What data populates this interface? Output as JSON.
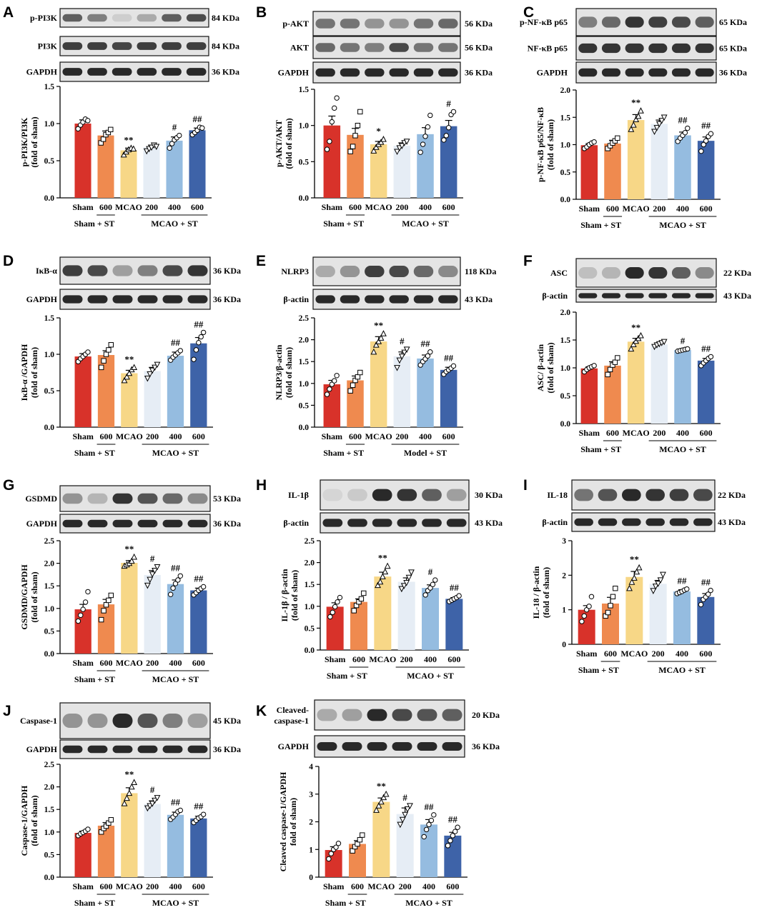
{
  "colors": [
    "#d8322a",
    "#ef8a4f",
    "#f7d787",
    "#e6edf5",
    "#95bce0",
    "#3e63a8"
  ],
  "x_categories": [
    "Sham",
    "600",
    "MCAO",
    "200",
    "400",
    "600"
  ],
  "chart_data": [
    {
      "id": "A",
      "type": "bar",
      "letter": "A",
      "group_left": "Sham + ST",
      "group_right": "MCAO + ST",
      "ylabel": [
        "p-PI3K/PI3K",
        "(fold of sham)"
      ],
      "ylim": [
        0,
        1.5
      ],
      "yticks": [
        "0.0",
        "0.5",
        "1.0",
        "1.5"
      ],
      "ytick_values": [
        0,
        0.5,
        1.0,
        1.5
      ],
      "values": [
        1.0,
        0.84,
        0.64,
        0.68,
        0.77,
        0.91
      ],
      "errors": [
        0.05,
        0.06,
        0.03,
        0.03,
        0.05,
        0.03
      ],
      "points": [
        [
          0.93,
          0.98,
          1.02,
          1.06,
          1.04
        ],
        [
          0.74,
          0.79,
          0.85,
          0.88,
          0.92
        ],
        [
          0.58,
          0.62,
          0.65,
          0.67,
          0.66
        ],
        [
          0.63,
          0.66,
          0.68,
          0.71,
          0.69
        ],
        [
          0.67,
          0.73,
          0.78,
          0.81,
          0.84
        ],
        [
          0.85,
          0.88,
          0.91,
          0.95,
          0.94
        ]
      ],
      "markers": [
        "circle",
        "square",
        "triangle",
        "invtriangle",
        "circle",
        "circle"
      ],
      "sig": [
        "",
        "",
        "**",
        "",
        "#",
        "##"
      ],
      "blots": [
        {
          "label": "p-PI3K",
          "kda": "84 KDa"
        },
        {
          "label": "PI3K",
          "kda": "84 KDa"
        },
        {
          "label": "GAPDH",
          "kda": "36 KDa"
        }
      ]
    },
    {
      "id": "B",
      "type": "bar",
      "letter": "B",
      "group_left": "Sham + ST",
      "group_right": "MCAO + ST",
      "ylabel": [
        "p-AKT/AKT",
        "(fold of sham)"
      ],
      "ylim": [
        0,
        1.5
      ],
      "yticks": [
        "0.0",
        "0.5",
        "1.0",
        "1.5"
      ],
      "ytick_values": [
        0,
        0.5,
        1.0,
        1.5
      ],
      "values": [
        1.0,
        0.87,
        0.74,
        0.72,
        0.88,
        0.99
      ],
      "errors": [
        0.13,
        0.09,
        0.04,
        0.04,
        0.09,
        0.08
      ],
      "points": [
        [
          0.67,
          0.78,
          1.05,
          1.24,
          1.38
        ],
        [
          0.64,
          0.71,
          0.86,
          1.0,
          1.19
        ],
        [
          0.65,
          0.7,
          0.74,
          0.77,
          0.81
        ],
        [
          0.64,
          0.69,
          0.72,
          0.76,
          0.78
        ],
        [
          0.63,
          0.74,
          0.85,
          0.98,
          1.14
        ],
        [
          0.8,
          0.86,
          0.97,
          1.15,
          1.19
        ]
      ],
      "markers": [
        "circle",
        "square",
        "triangle",
        "invtriangle",
        "circle",
        "circle"
      ],
      "sig": [
        "",
        "",
        "*",
        "",
        "",
        "#"
      ],
      "blots": [
        {
          "label": "p-AKT",
          "kda": "56 KDa"
        },
        {
          "label": "AKT",
          "kda": "56 KDa"
        },
        {
          "label": "GAPDH",
          "kda": "36 KDa"
        }
      ]
    },
    {
      "id": "C",
      "type": "bar",
      "letter": "C",
      "group_left": "Sham + ST",
      "group_right": "MCAO + ST",
      "ylabel": [
        "p-NF-κB p65/NF-κB",
        "(fold of sham)"
      ],
      "ylim": [
        0,
        2.0
      ],
      "yticks": [
        "0.0",
        "0.5",
        "1.0",
        "1.5",
        "2.0"
      ],
      "ytick_values": [
        0,
        0.5,
        1.0,
        1.5,
        2.0
      ],
      "values": [
        0.99,
        1.02,
        1.45,
        1.38,
        1.17,
        1.07
      ],
      "errors": [
        0.03,
        0.06,
        0.1,
        0.07,
        0.06,
        0.07
      ],
      "points": [
        [
          0.93,
          0.96,
          1.0,
          1.03,
          1.05
        ],
        [
          0.93,
          0.98,
          1.03,
          1.07,
          1.12
        ],
        [
          1.28,
          1.36,
          1.46,
          1.52,
          1.62
        ],
        [
          1.24,
          1.31,
          1.38,
          1.44,
          1.5
        ],
        [
          1.06,
          1.12,
          1.17,
          1.22,
          1.3
        ],
        [
          0.88,
          1.0,
          1.07,
          1.15,
          1.2
        ]
      ],
      "markers": [
        "circle",
        "square",
        "triangle",
        "invtriangle",
        "circle",
        "circle"
      ],
      "sig": [
        "",
        "",
        "**",
        "",
        "##",
        "##"
      ],
      "blots": [
        {
          "label": "p-NF-κB p65",
          "kda": "65 KDa"
        },
        {
          "label": "NF-κB p65",
          "kda": "65 KDa"
        },
        {
          "label": "GAPDH",
          "kda": "36 KDa"
        }
      ]
    },
    {
      "id": "D",
      "type": "bar",
      "letter": "D",
      "group_left": "Sham + ST",
      "group_right": "MCAO + ST",
      "ylabel": [
        "IκB-α /GAPDH",
        "(fold of sham)"
      ],
      "ylim": [
        0,
        1.5
      ],
      "yticks": [
        "0.0",
        "0.5",
        "1.0",
        "1.5"
      ],
      "ytick_values": [
        0,
        0.5,
        1.0,
        1.5
      ],
      "values": [
        0.97,
        0.99,
        0.74,
        0.77,
        0.98,
        1.15
      ],
      "errors": [
        0.04,
        0.06,
        0.04,
        0.05,
        0.05,
        0.08
      ],
      "points": [
        [
          0.9,
          0.94,
          0.97,
          1.0,
          1.03
        ],
        [
          0.82,
          0.91,
          1.0,
          1.06,
          1.13
        ],
        [
          0.64,
          0.69,
          0.74,
          0.79,
          0.82
        ],
        [
          0.67,
          0.73,
          0.78,
          0.82,
          0.86
        ],
        [
          0.92,
          0.96,
          0.99,
          1.02,
          1.05
        ],
        [
          0.93,
          1.06,
          1.16,
          1.24,
          1.3
        ]
      ],
      "markers": [
        "circle",
        "square",
        "triangle",
        "invtriangle",
        "circle",
        "circle"
      ],
      "sig": [
        "",
        "",
        "**",
        "",
        "##",
        "##"
      ],
      "blots": [
        {
          "label": "IκB-α",
          "kda": "36 KDa"
        },
        {
          "label": "GAPDH",
          "kda": "36 KDa"
        }
      ]
    },
    {
      "id": "E",
      "type": "bar",
      "letter": "E",
      "group_left": "Sham + ST",
      "group_right": "Model + ST",
      "ylabel": [
        "NLRP3/β-actin",
        "(fold of sham)"
      ],
      "ylim": [
        0,
        2.5
      ],
      "yticks": [
        "0.0",
        "0.5",
        "1.0",
        "1.5",
        "2.0",
        "2.5"
      ],
      "ytick_values": [
        0,
        0.5,
        1.0,
        1.5,
        2.0,
        2.5
      ],
      "values": [
        0.98,
        1.07,
        1.96,
        1.62,
        1.57,
        1.31
      ],
      "errors": [
        0.09,
        0.1,
        0.11,
        0.1,
        0.08,
        0.06
      ],
      "points": [
        [
          0.75,
          0.87,
          0.98,
          1.06,
          1.18
        ],
        [
          0.83,
          0.96,
          1.07,
          1.15,
          1.25
        ],
        [
          1.72,
          1.88,
          1.96,
          2.04,
          2.14
        ],
        [
          1.36,
          1.53,
          1.62,
          1.71,
          1.78
        ],
        [
          1.42,
          1.5,
          1.56,
          1.63,
          1.72
        ],
        [
          1.21,
          1.27,
          1.31,
          1.35,
          1.4
        ]
      ],
      "markers": [
        "circle",
        "square",
        "triangle",
        "invtriangle",
        "circle",
        "circle"
      ],
      "sig": [
        "",
        "",
        "**",
        "#",
        "##",
        "##"
      ],
      "blots": [
        {
          "label": "NLRP3",
          "kda": "118 KDa"
        },
        {
          "label": "β-actin",
          "kda": "43 KDa"
        }
      ]
    },
    {
      "id": "F",
      "type": "bar",
      "letter": "F",
      "group_left": "Sham + ST",
      "group_right": "MCAO + ST",
      "ylabel": [
        "ASC/ β-actin",
        "(fold of sham)"
      ],
      "ylim": [
        0,
        2.0
      ],
      "yticks": [
        "0.0",
        "0.5",
        "1.0",
        "1.5",
        "2.0"
      ],
      "ytick_values": [
        0,
        0.5,
        1.0,
        1.5,
        2.0
      ],
      "values": [
        0.99,
        1.04,
        1.47,
        1.42,
        1.32,
        1.13
      ],
      "errors": [
        0.03,
        0.07,
        0.06,
        0.03,
        0.01,
        0.04
      ],
      "points": [
        [
          0.93,
          0.97,
          1.0,
          1.02,
          1.04
        ],
        [
          0.88,
          0.97,
          1.05,
          1.1,
          1.18
        ],
        [
          1.34,
          1.42,
          1.48,
          1.53,
          1.58
        ],
        [
          1.38,
          1.41,
          1.43,
          1.45,
          1.47
        ],
        [
          1.3,
          1.31,
          1.32,
          1.33,
          1.34
        ],
        [
          1.04,
          1.09,
          1.13,
          1.17,
          1.2
        ]
      ],
      "markers": [
        "circle",
        "square",
        "triangle",
        "invtriangle",
        "circle",
        "circle"
      ],
      "sig": [
        "",
        "",
        "**",
        "",
        "#",
        "##"
      ],
      "blots": [
        {
          "label": "ASC",
          "kda": "22 KDa"
        },
        {
          "label": "β-actin",
          "kda": "43 KDa"
        }
      ]
    },
    {
      "id": "G",
      "type": "bar",
      "letter": "G",
      "group_left": "Sham + ST",
      "group_right": "MCAO + ST",
      "ylabel": [
        "GSDMD/GAPDH",
        "(fold of sham)"
      ],
      "ylim": [
        0,
        2.5
      ],
      "yticks": [
        "0.0",
        "0.5",
        "1.0",
        "1.5",
        "2.0",
        "2.5"
      ],
      "ytick_values": [
        0,
        0.5,
        1.0,
        1.5,
        2.0,
        2.5
      ],
      "values": [
        0.98,
        1.09,
        2.01,
        1.74,
        1.54,
        1.4
      ],
      "errors": [
        0.11,
        0.11,
        0.05,
        0.1,
        0.09,
        0.05
      ],
      "points": [
        [
          0.72,
          0.85,
          0.98,
          1.14,
          1.37
        ],
        [
          0.75,
          0.95,
          1.08,
          1.18,
          1.29
        ],
        [
          1.94,
          1.97,
          2.0,
          2.05,
          2.14
        ],
        [
          1.51,
          1.64,
          1.76,
          1.84,
          1.92
        ],
        [
          1.31,
          1.45,
          1.55,
          1.63,
          1.72
        ],
        [
          1.3,
          1.35,
          1.4,
          1.44,
          1.48
        ]
      ],
      "markers": [
        "circle",
        "square",
        "triangle",
        "invtriangle",
        "circle",
        "circle"
      ],
      "sig": [
        "",
        "",
        "**",
        "#",
        "##",
        "##"
      ],
      "blots": [
        {
          "label": "GSDMD",
          "kda": "53 KDa"
        },
        {
          "label": "GAPDH",
          "kda": "36 KDa"
        }
      ]
    },
    {
      "id": "H",
      "type": "bar",
      "letter": "H",
      "group_left": "Sham + ST",
      "group_right": "MCAO + ST",
      "ylabel": [
        "IL-1β / β-actin",
        "(fold of sham)"
      ],
      "ylim": [
        0,
        2.5
      ],
      "yticks": [
        "0.0",
        "0.5",
        "1.0",
        "1.5",
        "2.0",
        "2.5"
      ],
      "ytick_values": [
        0,
        0.5,
        1.0,
        1.5,
        2.0,
        2.5
      ],
      "values": [
        0.99,
        1.1,
        1.68,
        1.56,
        1.42,
        1.17
      ],
      "errors": [
        0.09,
        0.07,
        0.1,
        0.09,
        0.07,
        0.03
      ],
      "points": [
        [
          0.76,
          0.86,
          0.99,
          1.1,
          1.2
        ],
        [
          0.9,
          1.02,
          1.1,
          1.17,
          1.3
        ],
        [
          1.48,
          1.56,
          1.68,
          1.79,
          1.92
        ],
        [
          1.4,
          1.47,
          1.54,
          1.66,
          1.78
        ],
        [
          1.26,
          1.36,
          1.42,
          1.5,
          1.6
        ],
        [
          1.11,
          1.14,
          1.17,
          1.2,
          1.24
        ]
      ],
      "markers": [
        "circle",
        "square",
        "triangle",
        "invtriangle",
        "circle",
        "circle"
      ],
      "sig": [
        "",
        "",
        "**",
        "",
        "#",
        "##"
      ],
      "blots": [
        {
          "label": "IL-1β",
          "kda": "30 KDa"
        },
        {
          "label": "β-actin",
          "kda": "43 KDa"
        }
      ]
    },
    {
      "id": "I",
      "type": "bar",
      "letter": "I",
      "group_left": "Sham + ST",
      "group_right": "MCAO + ST",
      "ylabel": [
        "IL-18 / β-actin",
        "(fold of sham)"
      ],
      "ylim": [
        0,
        3
      ],
      "yticks": [
        "0",
        "1",
        "2",
        "3"
      ],
      "ytick_values": [
        0,
        1,
        2,
        3
      ],
      "values": [
        1.0,
        1.18,
        1.95,
        1.75,
        1.53,
        1.37
      ],
      "errors": [
        0.12,
        0.18,
        0.16,
        0.1,
        0.05,
        0.1
      ],
      "points": [
        [
          0.66,
          0.82,
          1.0,
          1.1,
          1.38
        ],
        [
          0.82,
          0.92,
          1.12,
          1.38,
          1.62
        ],
        [
          1.62,
          1.8,
          1.92,
          2.1,
          2.22
        ],
        [
          1.55,
          1.68,
          1.76,
          1.86,
          2.02
        ],
        [
          1.47,
          1.5,
          1.53,
          1.57,
          1.6
        ],
        [
          1.15,
          1.3,
          1.37,
          1.45,
          1.56
        ]
      ],
      "markers": [
        "circle",
        "square",
        "triangle",
        "invtriangle",
        "circle",
        "circle"
      ],
      "sig": [
        "",
        "",
        "**",
        "",
        "##",
        "##"
      ],
      "blots": [
        {
          "label": "IL-18",
          "kda": "22 KDa"
        },
        {
          "label": "β-actin",
          "kda": "43 KDa"
        }
      ]
    },
    {
      "id": "J",
      "type": "bar",
      "letter": "J",
      "group_left": "Sham + ST",
      "group_right": "MCAO + ST",
      "ylabel": [
        "Caspase-1/GAPDH",
        "(fold of sham)"
      ],
      "ylim": [
        0,
        2.5
      ],
      "yticks": [
        "0.0",
        "0.5",
        "1.0",
        "1.5",
        "2.0",
        "2.5"
      ],
      "ytick_values": [
        0,
        0.5,
        1.0,
        1.5,
        2.0,
        2.5
      ],
      "values": [
        0.98,
        1.14,
        1.86,
        1.62,
        1.38,
        1.3
      ],
      "errors": [
        0.04,
        0.07,
        0.12,
        0.07,
        0.06,
        0.05
      ],
      "points": [
        [
          0.92,
          0.96,
          0.99,
          1.02,
          1.06
        ],
        [
          1.0,
          1.08,
          1.13,
          1.2,
          1.27
        ],
        [
          1.63,
          1.75,
          1.86,
          2.0,
          2.1
        ],
        [
          1.53,
          1.58,
          1.63,
          1.7,
          1.76
        ],
        [
          1.28,
          1.33,
          1.39,
          1.45,
          1.48
        ],
        [
          1.21,
          1.26,
          1.31,
          1.34,
          1.39
        ]
      ],
      "markers": [
        "circle",
        "square",
        "triangle",
        "invtriangle",
        "circle",
        "circle"
      ],
      "sig": [
        "",
        "",
        "**",
        "#",
        "##",
        "##"
      ],
      "blots": [
        {
          "label": "Caspase-1",
          "kda": "45 KDa"
        },
        {
          "label": "GAPDH",
          "kda": "36 KDa"
        }
      ]
    },
    {
      "id": "K",
      "type": "bar",
      "letter": "K",
      "group_left": "Sham + ST",
      "group_right": "MCAO + ST",
      "ylabel": [
        "Cleaved caspase-1/GAPDH",
        "fold of sham)"
      ],
      "ylim": [
        0,
        4
      ],
      "yticks": [
        "0",
        "1",
        "2",
        "3",
        "4"
      ],
      "ytick_values": [
        0,
        1,
        2,
        3,
        4
      ],
      "values": [
        0.98,
        1.2,
        2.72,
        2.28,
        1.9,
        1.5
      ],
      "errors": [
        0.12,
        0.12,
        0.14,
        0.22,
        0.18,
        0.12
      ],
      "points": [
        [
          0.66,
          0.85,
          1.0,
          1.08,
          1.22
        ],
        [
          0.95,
          1.1,
          1.2,
          1.35,
          1.52
        ],
        [
          2.42,
          2.58,
          2.72,
          2.88,
          3.0
        ],
        [
          1.9,
          2.08,
          2.26,
          2.46,
          2.58
        ],
        [
          1.46,
          1.72,
          1.9,
          2.05,
          2.25
        ],
        [
          1.14,
          1.32,
          1.5,
          1.65,
          1.8
        ]
      ],
      "markers": [
        "circle",
        "square",
        "triangle",
        "invtriangle",
        "circle",
        "circle"
      ],
      "sig": [
        "",
        "",
        "**",
        "#",
        "##",
        "##"
      ],
      "blots": [
        {
          "label": "Cleaved-\ncaspase-1",
          "kda": "20 KDa"
        },
        {
          "label": "GAPDH",
          "kda": "36 KDa"
        }
      ]
    }
  ]
}
